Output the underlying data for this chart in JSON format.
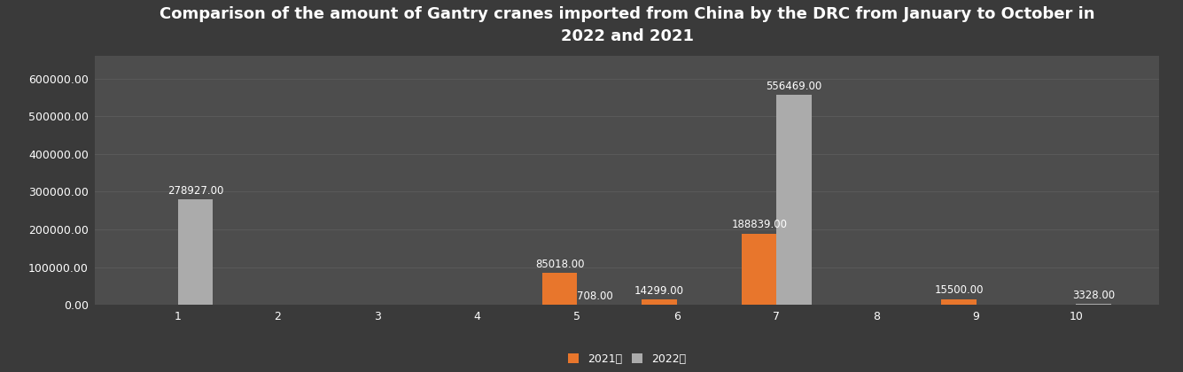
{
  "title": "Comparison of the amount of Gantry cranes imported from China by the DRC from January to October in\n2022 and 2021",
  "months": [
    1,
    2,
    3,
    4,
    5,
    6,
    7,
    8,
    9,
    10
  ],
  "values_2021": [
    0,
    0,
    0,
    0,
    85018,
    14299,
    188839,
    0,
    15500,
    0
  ],
  "values_2022": [
    278927,
    0,
    0,
    0,
    708,
    0,
    556469,
    0,
    0,
    3328
  ],
  "color_2021": "#E8762C",
  "color_2022": "#ABABAB",
  "background_color_top": "#3A3A3A",
  "background_color_mid": "#555555",
  "background_color_bot": "#3D3D3D",
  "text_color": "#FFFFFF",
  "grid_color": "#5A5A5A",
  "legend_2021": "2021年",
  "legend_2022": "2022年",
  "ylim": [
    0,
    660000
  ],
  "yticks": [
    0,
    100000,
    200000,
    300000,
    400000,
    500000,
    600000
  ],
  "bar_width": 0.35,
  "title_fontsize": 13,
  "label_fontsize": 8.5,
  "tick_fontsize": 9,
  "legend_fontsize": 9
}
